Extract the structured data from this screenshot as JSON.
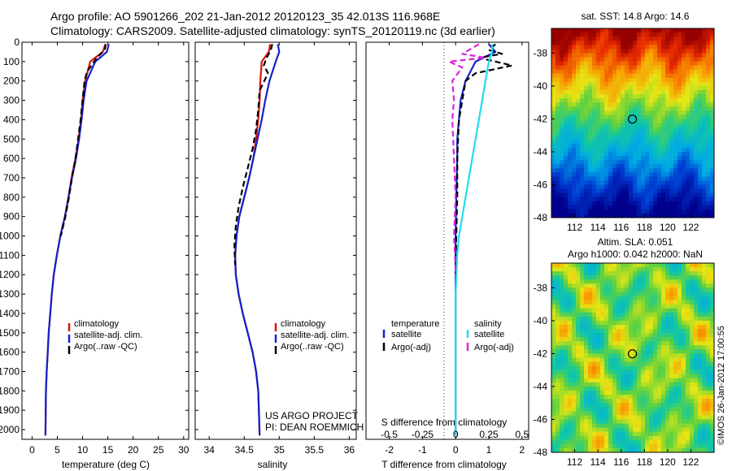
{
  "header": {
    "line1": "Argo profile: AO 5901266_202 21-Jan-2012 20120123_35 42.013S 116.968E",
    "line2": "Climatology: CARS2009. Satellite-adjusted climatology: synTS_20120119.nc (3d earlier)"
  },
  "colors": {
    "climatology": "#dd1111",
    "satellite": "#1122cc",
    "argo": "#000000",
    "salinity_satellite": "#22ddee",
    "salinity_argo": "#dd22dd"
  },
  "chart_data": [
    {
      "type": "line",
      "xlabel": "temperature (deg C)",
      "ylabel": "",
      "xlim": [
        -2,
        31
      ],
      "ylim": [
        2050,
        0
      ],
      "xticks": [
        0,
        5,
        10,
        15,
        20,
        25,
        30
      ],
      "yticks": [
        0,
        100,
        200,
        300,
        400,
        500,
        600,
        700,
        800,
        900,
        1000,
        1100,
        1200,
        1300,
        1400,
        1500,
        1600,
        1700,
        1800,
        1900,
        2000
      ],
      "legend": [
        "climatology",
        "satellite-adj. clim.",
        "Argo(..raw -QC)"
      ],
      "series": [
        {
          "name": "climatology",
          "style": "solid",
          "color_key": "climatology",
          "x": [
            14.5,
            14.0,
            11.5,
            10.5,
            10.0,
            9.7,
            9.2,
            8.6,
            7.8,
            7.2,
            6.5,
            5.6,
            4.9,
            4.3,
            3.9,
            3.6,
            3.3,
            3.1,
            2.9,
            2.75,
            2.7,
            2.65
          ],
          "y": [
            10,
            50,
            100,
            200,
            300,
            400,
            500,
            600,
            700,
            800,
            900,
            1000,
            1100,
            1200,
            1300,
            1400,
            1500,
            1600,
            1700,
            1800,
            1900,
            2030
          ]
        },
        {
          "name": "satellite-adj. clim.",
          "style": "solid",
          "color_key": "satellite",
          "x": [
            15.2,
            14.8,
            12.5,
            10.8,
            10.2,
            9.8,
            9.3,
            8.7,
            7.9,
            7.2,
            6.5,
            5.6,
            4.9,
            4.3,
            3.9,
            3.6,
            3.3,
            3.1,
            2.9,
            2.75,
            2.7,
            2.65
          ],
          "y": [
            10,
            50,
            100,
            200,
            300,
            400,
            500,
            600,
            700,
            800,
            900,
            1000,
            1100,
            1200,
            1300,
            1400,
            1500,
            1600,
            1700,
            1800,
            1900,
            2030
          ]
        },
        {
          "name": "Argo(..raw -QC)",
          "style": "dashed",
          "color_key": "argo",
          "x": [
            14.6,
            14.4,
            12.8,
            11.8,
            10.9,
            10.4,
            10.0,
            9.6,
            9.1,
            8.6,
            7.9,
            7.3,
            6.6,
            5.7
          ],
          "y": [
            10,
            40,
            80,
            120,
            150,
            200,
            300,
            400,
            500,
            600,
            700,
            800,
            900,
            1000
          ]
        }
      ]
    },
    {
      "type": "line",
      "xlabel": "salinity",
      "ylabel": "",
      "xlim": [
        33.8,
        36.1
      ],
      "ylim": [
        2050,
        0
      ],
      "xticks": [
        34,
        34.5,
        35,
        35.5,
        36
      ],
      "legend": [
        "climatology",
        "satellite-adj. clim.",
        "Argo(..raw -QC)"
      ],
      "series": [
        {
          "name": "climatology",
          "style": "solid",
          "color_key": "climatology",
          "x": [
            34.87,
            34.85,
            34.75,
            34.73,
            34.72,
            34.7,
            34.67,
            34.63,
            34.57,
            34.5,
            34.43,
            34.39,
            34.37,
            34.38,
            34.42,
            34.48,
            34.55,
            34.62,
            34.67,
            34.7,
            34.71,
            34.72
          ],
          "y": [
            10,
            50,
            100,
            200,
            300,
            400,
            500,
            600,
            700,
            800,
            900,
            1000,
            1100,
            1200,
            1300,
            1400,
            1500,
            1600,
            1700,
            1800,
            1900,
            2030
          ]
        },
        {
          "name": "satellite-adj. clim.",
          "style": "solid",
          "color_key": "satellite",
          "x": [
            34.98,
            35.0,
            34.95,
            34.86,
            34.8,
            34.75,
            34.69,
            34.63,
            34.57,
            34.5,
            34.43,
            34.39,
            34.37,
            34.38,
            34.42,
            34.48,
            34.55,
            34.62,
            34.67,
            34.7,
            34.71,
            34.72
          ],
          "y": [
            10,
            50,
            100,
            200,
            300,
            400,
            500,
            600,
            700,
            800,
            900,
            1000,
            1100,
            1200,
            1300,
            1400,
            1500,
            1600,
            1700,
            1800,
            1900,
            2030
          ]
        },
        {
          "name": "Argo(..raw -QC)",
          "style": "dashed",
          "color_key": "argo",
          "x": [
            34.9,
            34.88,
            34.82,
            34.78,
            34.84,
            34.72,
            34.7,
            34.67,
            34.62,
            34.55,
            34.48,
            34.42,
            34.38,
            34.36,
            34.37
          ],
          "y": [
            10,
            40,
            80,
            120,
            160,
            250,
            350,
            450,
            550,
            650,
            750,
            850,
            950,
            1050,
            1150
          ]
        }
      ]
    },
    {
      "type": "line",
      "xlabel": "T difference from climatology",
      "ylabel": "",
      "xlim": [
        -2.7,
        2.2
      ],
      "ylim": [
        2050,
        0
      ],
      "xticks": [
        -2,
        -1,
        0,
        1,
        2
      ],
      "xticklabels": [
        "-2",
        "-1",
        "0",
        "1",
        "2"
      ],
      "secondary_xlabel": "S difference from climatology",
      "secondary_xticklabels": [
        "-0.5",
        "-0.25",
        "0",
        "0.25",
        "0.5"
      ],
      "secondary_xtick_positions": [
        -2,
        -1,
        0,
        1,
        2
      ],
      "legend_headers": [
        "temperature",
        "salinity"
      ],
      "legend": [
        "satellite",
        "Argo(-adj)",
        "satellite",
        "Argo(-adj)"
      ],
      "series": [
        {
          "name": "satellite",
          "group": "temperature",
          "style": "solid",
          "color_key": "satellite",
          "x": [
            1.0,
            1.2,
            0.6,
            0.3,
            0.15,
            0.1,
            0.05,
            0.05,
            0.02,
            0.0,
            0.0,
            0.0,
            0.0,
            0.0
          ],
          "y": [
            10,
            50,
            100,
            200,
            300,
            400,
            500,
            600,
            800,
            1000,
            1200,
            1500,
            1800,
            2030
          ]
        },
        {
          "name": "Argo(-adj)",
          "group": "temperature",
          "style": "dashed",
          "color_key": "argo",
          "x": [
            1.2,
            1.0,
            1.4,
            0.7,
            1.7,
            0.6,
            0.3,
            0.2,
            0.1,
            0.05,
            0.05,
            0.02,
            0.0
          ],
          "y": [
            10,
            40,
            60,
            80,
            120,
            160,
            200,
            300,
            400,
            600,
            800,
            1000,
            1200
          ]
        },
        {
          "name": "satellite",
          "group": "salinity",
          "style": "solid",
          "color_key": "salinity_satellite",
          "x": [
            1.1,
            1.1,
            1.0,
            0.9,
            0.8,
            0.7,
            0.6,
            0.5,
            0.4,
            0.3,
            0.2,
            0.1,
            0.05,
            0.0,
            0.0
          ],
          "y": [
            10,
            50,
            100,
            200,
            300,
            400,
            500,
            600,
            700,
            800,
            900,
            1000,
            1100,
            1300,
            2030
          ]
        },
        {
          "name": "Argo(-adj)",
          "group": "salinity",
          "style": "dashed",
          "color_key": "salinity_argo",
          "x": [
            0.7,
            0.2,
            0.9,
            -0.2,
            0.2,
            -0.1,
            -0.05,
            -0.1,
            -0.05,
            0.0,
            -0.05,
            -0.02,
            0.0
          ],
          "y": [
            10,
            60,
            80,
            100,
            130,
            200,
            300,
            400,
            600,
            800,
            1000,
            1100,
            1200
          ]
        }
      ]
    },
    {
      "type": "heatmap",
      "title": "sat. SST: 14.8 Argo: 14.6",
      "xlim": [
        110,
        124
      ],
      "ylim": [
        -48,
        -36.5
      ],
      "xticks": [
        112,
        114,
        116,
        118,
        120,
        122
      ],
      "yticks": [
        -38,
        -40,
        -42,
        -44,
        -46,
        -48
      ],
      "marker": {
        "lon": 116.968,
        "lat": -42.013
      }
    },
    {
      "type": "heatmap",
      "title": "Altim. SLA: 0.051",
      "subtitle": "Argo h1000: 0.042 h2000: NaN",
      "xlim": [
        110,
        124
      ],
      "ylim": [
        -48,
        -36.5
      ],
      "xticks": [
        112,
        114,
        116,
        118,
        120,
        122
      ],
      "yticks": [
        -38,
        -40,
        -42,
        -44,
        -46,
        -48
      ],
      "marker": {
        "lon": 116.968,
        "lat": -42.013
      }
    }
  ],
  "annotations": {
    "project_line1": "US ARGO PROJECT",
    "project_line2": "PI: DEAN ROEMMICH",
    "credit": "©IMOS 26-Jan-2012 17:00:55"
  }
}
